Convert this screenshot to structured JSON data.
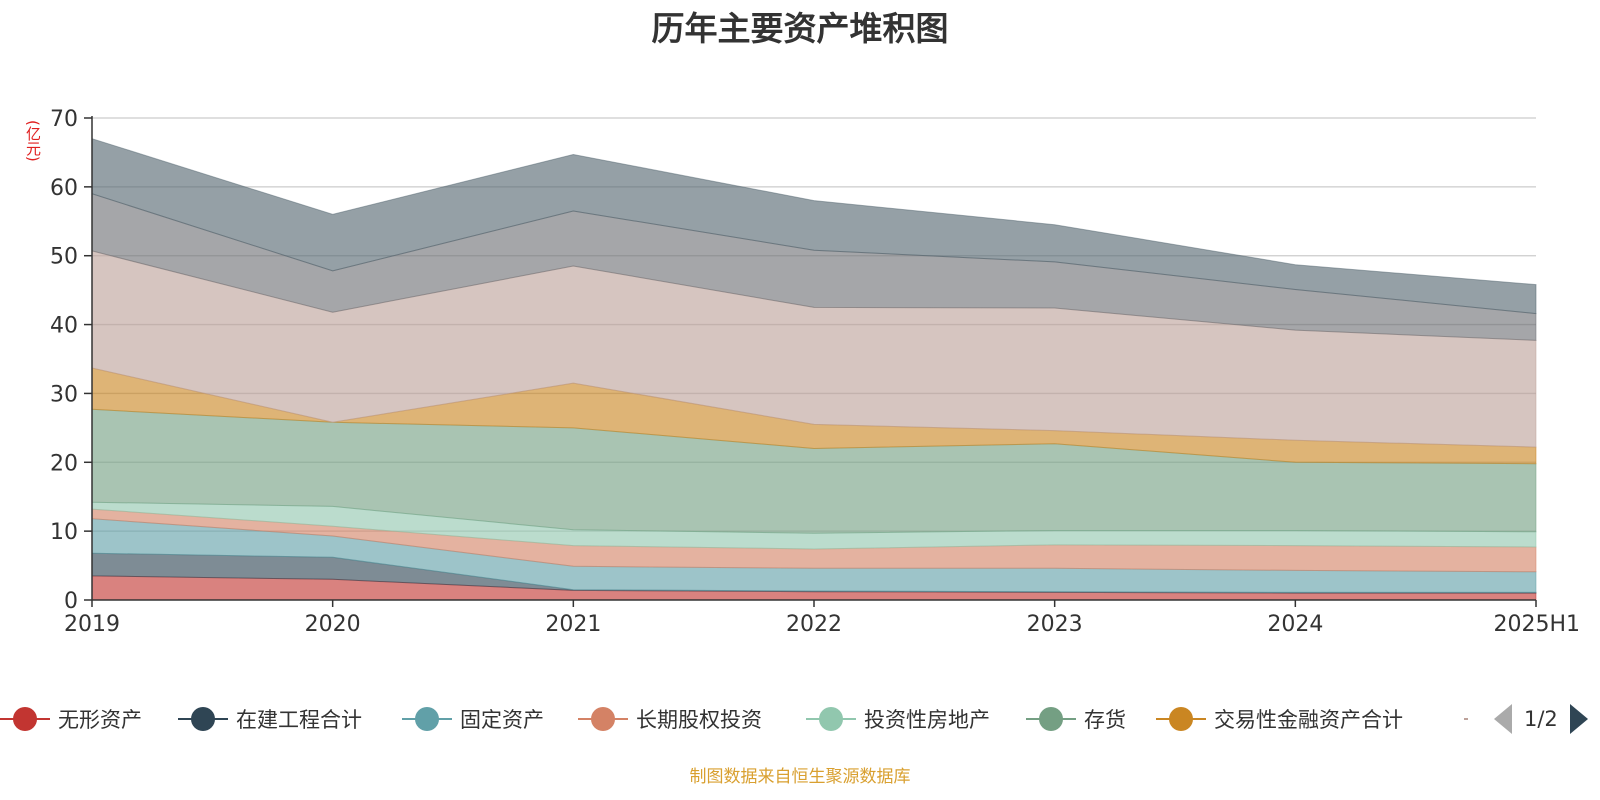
{
  "chart_data": {
    "type": "area",
    "stacked": true,
    "title": "历年主要资产堆积图",
    "unit": "(亿元)",
    "x": [
      "2019",
      "2020",
      "2021",
      "2022",
      "2023",
      "2024",
      "2025H1"
    ],
    "ylim": [
      0,
      70
    ],
    "yticks": [
      0,
      10,
      20,
      30,
      40,
      50,
      60,
      70
    ],
    "grid": true,
    "legend_position": "bottom",
    "series": [
      {
        "name": "无形资产",
        "color": "#c23531",
        "values": [
          3.5,
          3.0,
          1.4,
          1.2,
          1.1,
          1.0,
          1.0
        ]
      },
      {
        "name": "在建工程合计",
        "color": "#2f4554",
        "values": [
          3.3,
          3.2,
          0.1,
          0.1,
          0.1,
          0.1,
          0.1
        ]
      },
      {
        "name": "固定资产",
        "color": "#61a0a8",
        "values": [
          5.0,
          3.1,
          3.4,
          3.3,
          3.4,
          3.2,
          3.0
        ]
      },
      {
        "name": "长期股权投资",
        "color": "#d48265",
        "values": [
          1.4,
          1.4,
          3.0,
          2.8,
          3.4,
          3.6,
          3.6
        ]
      },
      {
        "name": "投资性房地产",
        "color": "#91c7ae",
        "values": [
          1.0,
          2.9,
          2.3,
          2.3,
          2.1,
          2.2,
          2.2
        ]
      },
      {
        "name": "存货",
        "color": "#749f83",
        "values": [
          13.5,
          12.2,
          14.8,
          12.3,
          12.6,
          9.9,
          9.9
        ]
      },
      {
        "name": "交易性金融资产合计",
        "color": "#ca8622",
        "values": [
          6.0,
          0.0,
          6.5,
          3.5,
          1.9,
          3.2,
          2.4
        ]
      },
      {
        "name": "",
        "color": "#bda29a",
        "values": [
          17.0,
          16.0,
          17.0,
          17.0,
          17.8,
          16.0,
          15.5
        ]
      },
      {
        "name": "",
        "color": "#6e7074",
        "values": [
          8.3,
          6.0,
          8.0,
          8.3,
          6.7,
          5.9,
          3.9
        ]
      },
      {
        "name": "",
        "color": "#546570",
        "values": [
          8.0,
          8.2,
          8.2,
          7.2,
          5.4,
          3.6,
          4.2
        ]
      }
    ]
  },
  "legend": {
    "page_label": "1/2"
  },
  "source_note": "制图数据来自恒生聚源数据库"
}
